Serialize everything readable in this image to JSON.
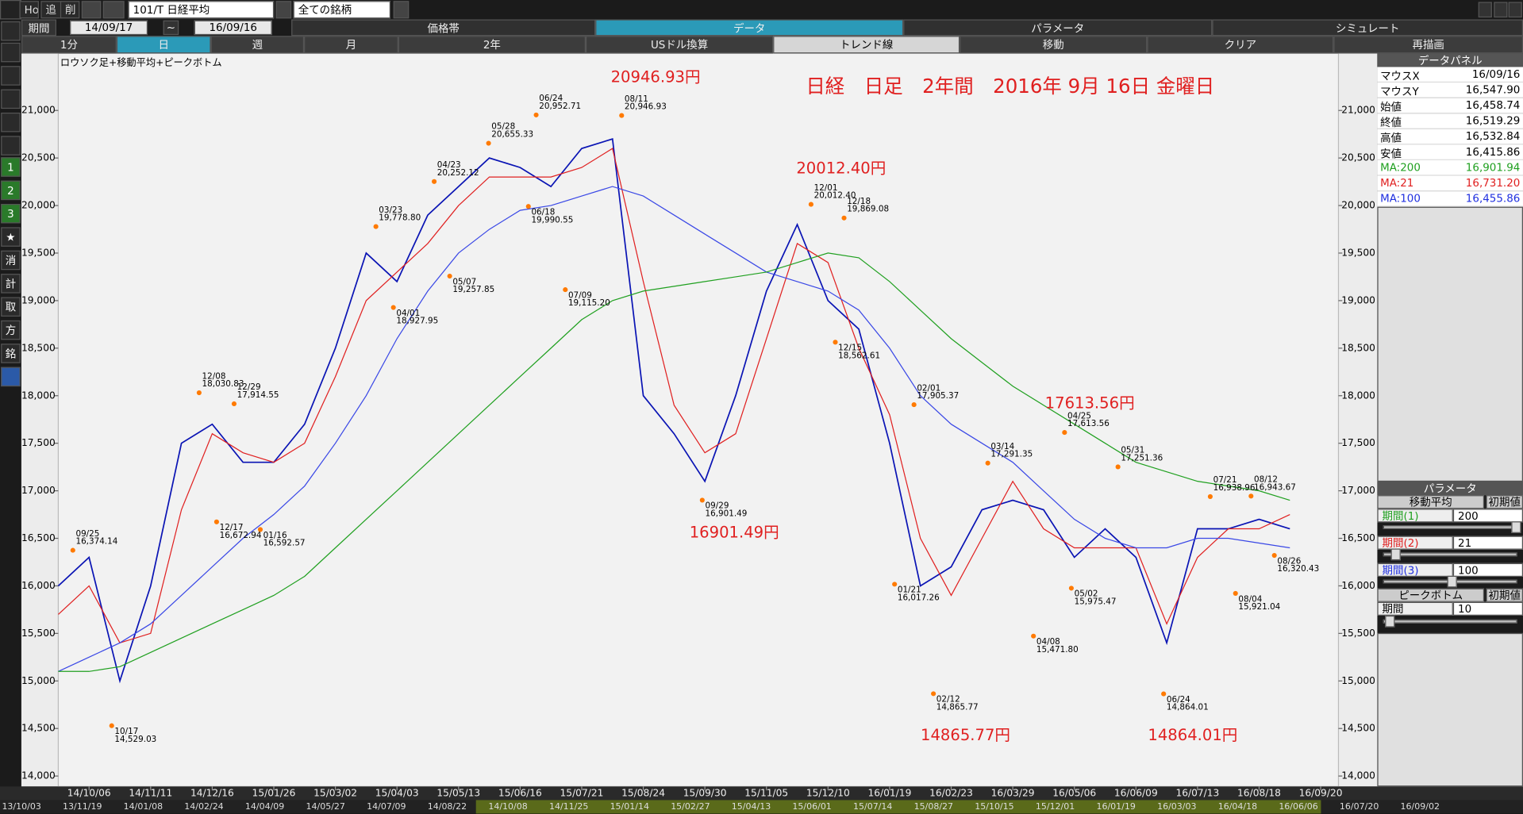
{
  "toolbar": {
    "row1": [
      "Hot",
      "追",
      "削",
      "101/T 日経平均",
      "全ての銘柄"
    ],
    "row2": {
      "label": "期間",
      "from": "14/09/17",
      "sep": "~",
      "to": "16/09/16",
      "tabs": [
        "価格帯",
        "データ",
        "パラメータ",
        "シミュレート"
      ]
    },
    "row3": [
      "1分",
      "日",
      "週",
      "月",
      "2年",
      "USドル換算",
      "トレンド線",
      "移動",
      "クリア",
      "再描画"
    ]
  },
  "side_icons": [
    "1",
    "2",
    "3",
    "★",
    "消",
    "計",
    "取",
    "方",
    "銘"
  ],
  "data_panel": {
    "title": "データパネル",
    "rows": [
      [
        "マウスX",
        "16/09/16"
      ],
      [
        "マウスY",
        "16,547.90"
      ],
      [
        "始値",
        "16,458.74"
      ],
      [
        "終値",
        "16,519.29"
      ],
      [
        "高値",
        "16,532.84"
      ],
      [
        "安値",
        "16,415.86"
      ],
      [
        "MA:200",
        "16,901.94"
      ],
      [
        "MA:21",
        "16,731.20"
      ],
      [
        "MA:100",
        "16,455.86"
      ]
    ]
  },
  "param_panel": {
    "title": "パラメータ",
    "ma": {
      "title": "移動平均",
      "reset": "初期値",
      "rows": [
        [
          "期間(1)",
          "200"
        ],
        [
          "期間(2)",
          "21"
        ],
        [
          "期間(3)",
          "100"
        ]
      ]
    },
    "peak": {
      "title": "ピークボトム",
      "reset": "初期値",
      "rows": [
        [
          "期間",
          "10"
        ]
      ]
    }
  },
  "timeline": [
    "13/10/03",
    "13/11/19",
    "14/01/08",
    "14/02/24",
    "14/04/09",
    "14/05/27",
    "14/07/09",
    "14/08/22",
    "14/10/08",
    "14/11/25",
    "15/01/14",
    "15/02/27",
    "15/04/13",
    "15/06/01",
    "15/07/14",
    "15/08/27",
    "15/10/15",
    "15/12/01",
    "16/01/19",
    "16/03/03",
    "16/04/18",
    "16/06/06",
    "16/07/20",
    "16/09/02"
  ],
  "chart_data": {
    "type": "line",
    "subtitle": "ロウソク足+移動平均+ピークボトム",
    "title": "日経　日足　2年間　2016年 9月 16日 金曜日",
    "categories": [
      null,
      "14/10/06",
      null,
      "14/11/11",
      null,
      "14/12/16",
      null,
      "15/01/26",
      null,
      "15/03/02",
      null,
      "15/04/03",
      null,
      "15/05/13",
      null,
      "15/06/16",
      null,
      "15/07/21",
      null,
      "15/08/24",
      null,
      "15/09/30",
      null,
      "15/11/05",
      null,
      "15/12/10",
      null,
      "16/01/19",
      null,
      "16/02/23",
      null,
      "16/03/29",
      null,
      "16/05/06",
      null,
      "16/06/09",
      null,
      "16/07/13",
      null,
      "16/08/18",
      null,
      "16/09/20"
    ],
    "series": [
      {
        "color": "#0a14b4",
        "values": [
          16000,
          16300,
          15000,
          16000,
          17500,
          17700,
          17300,
          17300,
          17700,
          18500,
          19500,
          19200,
          19900,
          20200,
          20500,
          20400,
          20200,
          20600,
          20700,
          18000,
          17600,
          17100,
          18000,
          19100,
          19800,
          19000,
          18700,
          17500,
          16000,
          16200,
          16800,
          16900,
          16800,
          16300,
          16600,
          16300,
          15400,
          16600,
          16600,
          16700,
          16600,
          null
        ]
      },
      {
        "color": "#e02020",
        "values": [
          15700,
          16000,
          15400,
          15500,
          16800,
          17600,
          17400,
          17300,
          17500,
          18200,
          19000,
          19300,
          19600,
          20000,
          20300,
          20300,
          20300,
          20400,
          20600,
          19200,
          17900,
          17400,
          17600,
          18600,
          19600,
          19400,
          18500,
          17800,
          16500,
          15900,
          16500,
          17100,
          16600,
          16400,
          16400,
          16400,
          15600,
          16300,
          16600,
          16600,
          16750,
          null
        ]
      },
      {
        "color": "#3a48e6",
        "values": [
          15100,
          15250,
          15400,
          15600,
          15900,
          16200,
          16500,
          16750,
          17050,
          17500,
          18000,
          18600,
          19100,
          19500,
          19750,
          19950,
          20000,
          20100,
          20200,
          20100,
          19900,
          19700,
          19500,
          19300,
          19200,
          19100,
          18900,
          18500,
          18000,
          17700,
          17500,
          17300,
          17000,
          16700,
          16500,
          16400,
          16400,
          16500,
          16500,
          16450,
          16400,
          null
        ]
      },
      {
        "color": "#20a020",
        "values": [
          15100,
          15100,
          15150,
          15300,
          15450,
          15600,
          15750,
          15900,
          16100,
          16400,
          16700,
          17000,
          17300,
          17600,
          17900,
          18200,
          18500,
          18800,
          19000,
          19100,
          19150,
          19200,
          19250,
          19300,
          19400,
          19500,
          19450,
          19200,
          18900,
          18600,
          18350,
          18100,
          17900,
          17700,
          17500,
          17300,
          17200,
          17100,
          17050,
          17000,
          16900,
          null
        ]
      }
    ],
    "ylim": [
      13890,
      21600
    ],
    "yticks": [
      {
        "value": 14000,
        "label": "14,000"
      },
      {
        "value": 14500,
        "label": "14,500"
      },
      {
        "value": 15000,
        "label": "15,000"
      },
      {
        "value": 15500,
        "label": "15,500"
      },
      {
        "value": 16000,
        "label": "16,000"
      },
      {
        "value": 16500,
        "label": "16,500"
      },
      {
        "value": 17000,
        "label": "17,000"
      },
      {
        "value": 17500,
        "label": "17,500"
      },
      {
        "value": 18000,
        "label": "18,000"
      },
      {
        "value": 18500,
        "label": "18,500"
      },
      {
        "value": 19000,
        "label": "19,000"
      },
      {
        "value": 19500,
        "label": "19,500"
      },
      {
        "value": 20000,
        "label": "20,000"
      },
      {
        "value": 20500,
        "label": "20,500"
      },
      {
        "value": 21000,
        "label": "21,000"
      }
    ],
    "peaks": [
      {
        "date": "09/25",
        "value": 16374.14,
        "label": "16,374.14"
      },
      {
        "date": "10/17",
        "value": 14529.03,
        "label": "14,529.03"
      },
      {
        "date": "12/08",
        "value": 18030.83,
        "label": "18,030.83"
      },
      {
        "date": "12/17",
        "value": 16672.94,
        "label": "16,672.94"
      },
      {
        "date": "12/29",
        "value": 17914.55,
        "label": "17,914.55"
      },
      {
        "date": "01/16",
        "value": 16592.57,
        "label": "16,592.57"
      },
      {
        "date": "03/23",
        "value": 19778.8,
        "label": "19,778.80"
      },
      {
        "date": "04/01",
        "value": 18927.95,
        "label": "18,927.95"
      },
      {
        "date": "04/23",
        "value": 20252.12,
        "label": "20,252.12"
      },
      {
        "date": "05/07",
        "value": 19257.85,
        "label": "19,257.85"
      },
      {
        "date": "05/28",
        "value": 20655.33,
        "label": "20,655.33"
      },
      {
        "date": "06/18",
        "value": 19990.55,
        "label": "19,990.55"
      },
      {
        "date": "06/24",
        "value": 20952.71,
        "label": "20,952.71"
      },
      {
        "date": "07/09",
        "value": 19115.2,
        "label": "19,115.20"
      },
      {
        "date": "08/11",
        "value": 20946.93,
        "label": "20,946.93"
      },
      {
        "date": "09/29",
        "value": 16901.49,
        "label": "16,901.49"
      },
      {
        "date": "12/01",
        "value": 20012.4,
        "label": "20,012.40"
      },
      {
        "date": "12/15",
        "value": 18562.61,
        "label": "18,562.61"
      },
      {
        "date": "12/18",
        "value": 19869.08,
        "label": "19,869.08"
      },
      {
        "date": "02/01",
        "value": 17905.37,
        "label": "17,905.37"
      },
      {
        "date": "01/21",
        "value": 16017.26,
        "label": "16,017.26"
      },
      {
        "date": "02/12",
        "value": 14865.77,
        "label": "14,865.77"
      },
      {
        "date": "03/14",
        "value": 17291.35,
        "label": "17,291.35"
      },
      {
        "date": "04/08",
        "value": 15471.8,
        "label": "15,471.80"
      },
      {
        "date": "04/25",
        "value": 17613.56,
        "label": "17,613.56"
      },
      {
        "date": "05/02",
        "value": 15975.47,
        "label": "15,975.47"
      },
      {
        "date": "05/31",
        "value": 17251.36,
        "label": "17,251.36"
      },
      {
        "date": "06/24",
        "value": 14864.01,
        "label": "14,864.01"
      },
      {
        "date": "07/21",
        "value": 16938.96,
        "label": "16,938.96"
      },
      {
        "date": "08/04",
        "value": 15921.04,
        "label": "15,921.04"
      },
      {
        "date": "08/12",
        "value": 16943.67,
        "label": "16,943.67"
      },
      {
        "date": "08/26",
        "value": 16320.43,
        "label": "16,320.43"
      }
    ],
    "annotations": [
      "20946.93円",
      "20012.40円",
      "16901.49円",
      "17613.56円",
      "14865.77円",
      "14864.01円"
    ]
  }
}
